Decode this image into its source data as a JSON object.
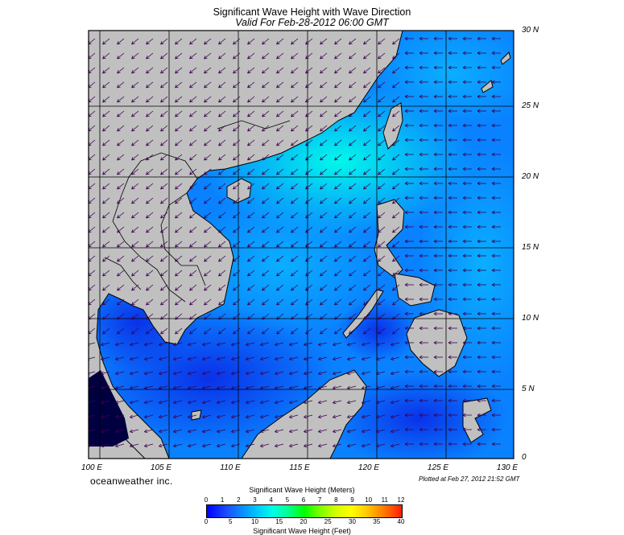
{
  "title": "Significant Wave Height with Wave Direction",
  "subtitle": "Valid For Feb-28-2012 06:00 GMT",
  "lat_labels": [
    "30 N",
    "25 N",
    "20 N",
    "15 N",
    "10 N",
    "5 N",
    "0"
  ],
  "lon_labels": [
    "100 E",
    "105 E",
    "110 E",
    "115 E",
    "120 E",
    "125 E",
    "130 E"
  ],
  "credit": "oceanweather inc.",
  "plotted": "Plotted at Feb 27, 2012 21:52 GMT",
  "colorbar": {
    "meters_title": "Significant Wave Height (Meters)",
    "feet_title": "Significant Wave Height (Feet)",
    "meters_ticks": [
      "0",
      "1",
      "2",
      "3",
      "4",
      "5",
      "6",
      "7",
      "8",
      "9",
      "10",
      "11",
      "12"
    ],
    "feet_ticks": [
      "0",
      "5",
      "10",
      "15",
      "20",
      "25",
      "30",
      "35",
      "40"
    ]
  },
  "colors": {
    "land": "#c0c0c0",
    "calm_sea": "#0a3cff",
    "mid_sea": "#0aa0ff",
    "high_sea": "#00ffe6",
    "arrows": "#3c0050"
  },
  "map_extent": {
    "lon": [
      99,
      130
    ],
    "lat": [
      0,
      30
    ]
  }
}
